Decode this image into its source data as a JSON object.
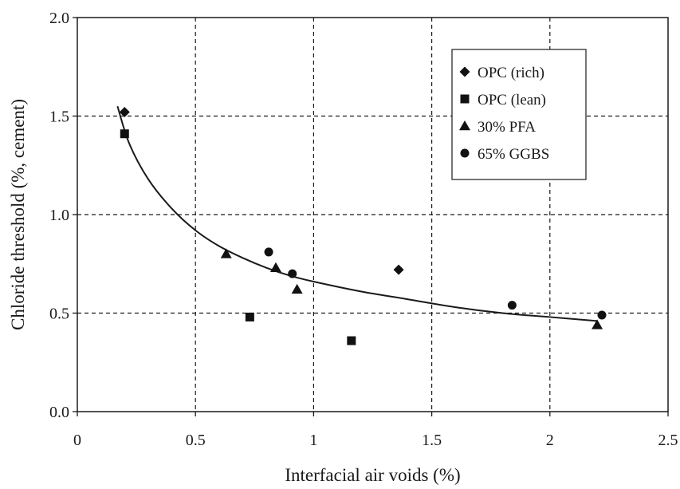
{
  "chart_data": {
    "type": "scatter",
    "xlabel": "Interfacial air voids (%)",
    "ylabel": "Chloride threshold (%, cement)",
    "xlim": [
      0,
      2.5
    ],
    "ylim": [
      0,
      2.0
    ],
    "x_ticks": [
      0,
      0.5,
      1,
      1.5,
      2,
      2.5
    ],
    "x_tick_labels": [
      "0",
      "0.5",
      "1",
      "1.5",
      "2",
      "2.5"
    ],
    "y_ticks": [
      0,
      0.5,
      1.0,
      1.5,
      2.0
    ],
    "y_tick_labels": [
      "0.0",
      "0.5",
      "1.0",
      "1.5",
      "2.0"
    ],
    "grid": true,
    "grid_style": "dashed",
    "legend_position": "top-right",
    "series": [
      {
        "name": "OPC (rich)",
        "marker": "diamond",
        "points": [
          [
            0.2,
            1.52
          ],
          [
            1.36,
            0.72
          ]
        ]
      },
      {
        "name": "OPC (lean)",
        "marker": "square",
        "points": [
          [
            0.2,
            1.41
          ],
          [
            0.73,
            0.48
          ],
          [
            1.16,
            0.36
          ]
        ]
      },
      {
        "name": "30% PFA",
        "marker": "triangle",
        "points": [
          [
            0.63,
            0.8
          ],
          [
            0.84,
            0.73
          ],
          [
            0.93,
            0.62
          ],
          [
            2.2,
            0.44
          ]
        ]
      },
      {
        "name": "65% GGBS",
        "marker": "circle",
        "points": [
          [
            0.81,
            0.81
          ],
          [
            0.91,
            0.7
          ],
          [
            1.84,
            0.54
          ],
          [
            2.22,
            0.49
          ]
        ]
      }
    ],
    "trendline": {
      "type": "curve",
      "points": [
        [
          0.17,
          1.55
        ],
        [
          0.22,
          1.36
        ],
        [
          0.3,
          1.18
        ],
        [
          0.4,
          1.03
        ],
        [
          0.5,
          0.92
        ],
        [
          0.6,
          0.84
        ],
        [
          0.7,
          0.78
        ],
        [
          0.8,
          0.73
        ],
        [
          0.9,
          0.69
        ],
        [
          1.0,
          0.66
        ],
        [
          1.2,
          0.61
        ],
        [
          1.4,
          0.57
        ],
        [
          1.6,
          0.53
        ],
        [
          1.8,
          0.5
        ],
        [
          2.0,
          0.48
        ],
        [
          2.2,
          0.46
        ]
      ]
    }
  }
}
